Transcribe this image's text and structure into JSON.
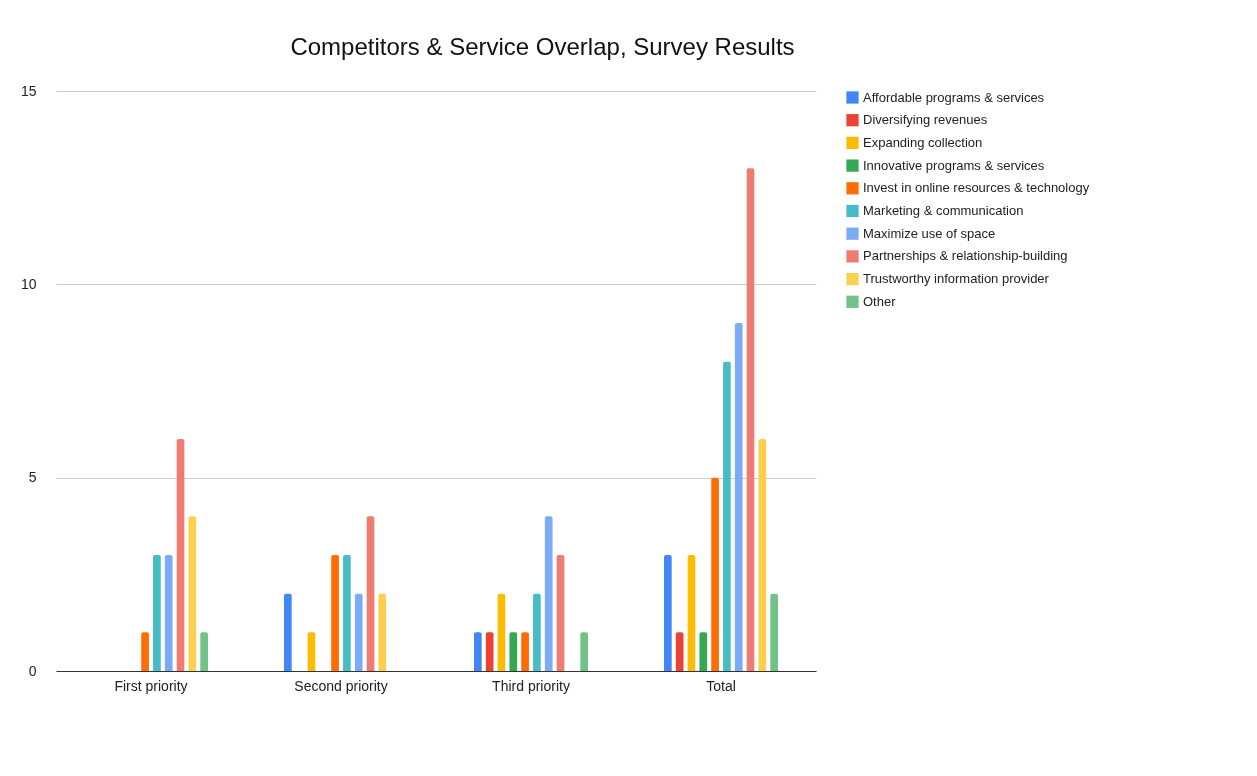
{
  "chart_data": {
    "type": "bar",
    "title": "Competitors & Service Overlap, Survey Results",
    "categories": [
      "First priority",
      "Second priority",
      "Third priority",
      "Total"
    ],
    "series": [
      {
        "name": "Affordable programs & services",
        "color": "#4285f4",
        "values": [
          0,
          2,
          1,
          3
        ]
      },
      {
        "name": "Diversifying revenues",
        "color": "#ea4335",
        "values": [
          0,
          0,
          1,
          1
        ]
      },
      {
        "name": "Expanding collection",
        "color": "#fbbc04",
        "values": [
          0,
          1,
          2,
          3
        ]
      },
      {
        "name": "Innovative programs & services",
        "color": "#34a853",
        "values": [
          0,
          0,
          1,
          1
        ]
      },
      {
        "name": "Invest in online resources & technology",
        "color": "#ff6d01",
        "values": [
          1,
          3,
          1,
          5
        ]
      },
      {
        "name": "Marketing & communication",
        "color": "#46bdc6",
        "values": [
          3,
          3,
          2,
          8
        ]
      },
      {
        "name": "Maximize use of space",
        "color": "#7baaf7",
        "values": [
          3,
          2,
          4,
          9
        ]
      },
      {
        "name": "Partnerships & relationship-building",
        "color": "#f07b72",
        "values": [
          6,
          4,
          3,
          13
        ]
      },
      {
        "name": "Trustworthy information provider",
        "color": "#fcd04f",
        "values": [
          4,
          2,
          0,
          6
        ]
      },
      {
        "name": "Other",
        "color": "#71c287",
        "values": [
          1,
          0,
          1,
          2
        ]
      }
    ],
    "ylim": [
      0,
      15
    ],
    "yticks": [
      0,
      5,
      10,
      15
    ],
    "grid": "y",
    "legend": "right"
  }
}
